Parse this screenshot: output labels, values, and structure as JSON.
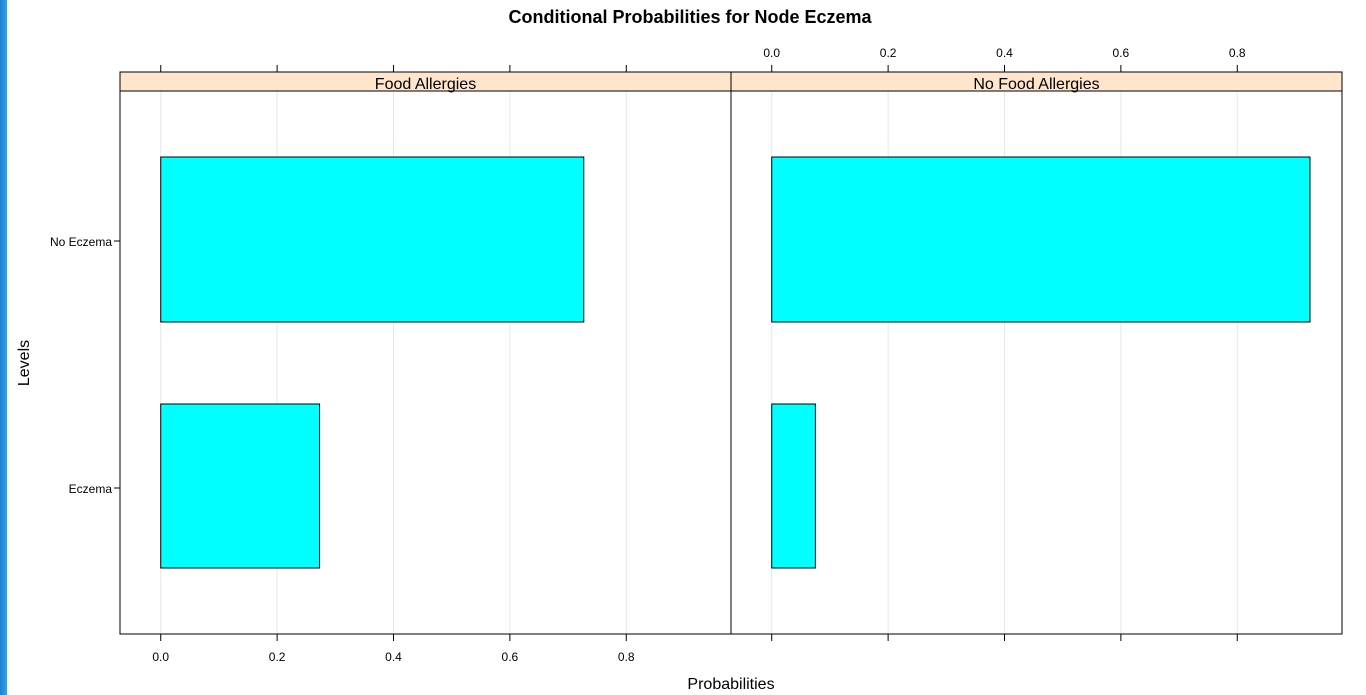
{
  "chart_data": {
    "type": "bar",
    "orientation": "horizontal",
    "title": "Conditional Probabilities for Node Eczema",
    "xlabel": "Probabilities",
    "ylabel": "Levels",
    "xlim": [
      -0.07,
      0.98
    ],
    "xticks": [
      0.0,
      0.2,
      0.4,
      0.6,
      0.8
    ],
    "xtick_labels": [
      "0.0",
      "0.2",
      "0.4",
      "0.6",
      "0.8"
    ],
    "categories": [
      "No Eczema",
      "Eczema"
    ],
    "panels": [
      {
        "strip": "Food Allergies",
        "values": [
          0.727,
          0.273
        ]
      },
      {
        "strip": "No Food Allergies",
        "values": [
          0.925,
          0.075
        ]
      }
    ],
    "colors": {
      "bar": "#00ffff",
      "strip": "#ffe5cc",
      "grid": "#e6e6e6"
    },
    "grid": true
  }
}
